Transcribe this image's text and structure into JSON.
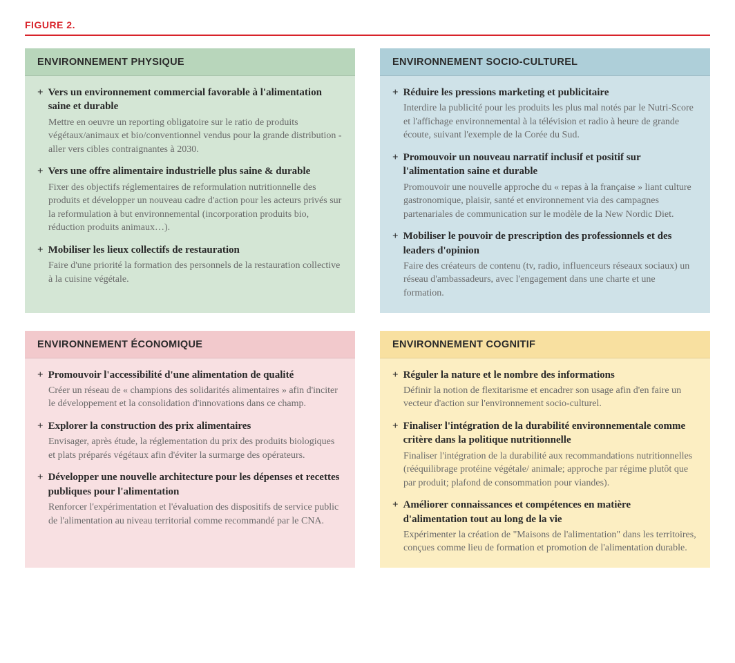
{
  "figure_label": "FIGURE 2.",
  "colors": {
    "accent_red": "#d8232a",
    "text_primary": "#2a2a2a",
    "text_secondary": "#6a6a6a"
  },
  "panels": [
    {
      "key": "phys",
      "title": "ENVIRONNEMENT PHYSIQUE",
      "header_bg": "#b8d6bb",
      "body_bg": "#d4e6d5",
      "items": [
        {
          "heading": "Vers un environnement commercial favorable à l'alimentation saine et durable",
          "desc": "Mettre en oeuvre un reporting obligatoire sur le ratio de produits végétaux/animaux et bio/conventionnel vendus pour la grande distribution - aller vers cibles contraignantes à 2030."
        },
        {
          "heading": "Vers une offre alimentaire industrielle plus saine & durable",
          "desc": "Fixer des objectifs réglementaires de reformulation nutritionnelle des produits et développer un nouveau cadre d'action pour les acteurs privés sur la reformulation à but environnemental (incorporation produits bio, réduction produits animaux…)."
        },
        {
          "heading": "Mobiliser les lieux collectifs de restauration",
          "desc": "Faire d'une priorité la formation des personnels de la restauration collective à la cuisine végétale."
        }
      ]
    },
    {
      "key": "socio",
      "title": "ENVIRONNEMENT SOCIO-CULTUREL",
      "header_bg": "#aecfd9",
      "body_bg": "#cfe2e8",
      "items": [
        {
          "heading": "Réduire les pressions marketing et publicitaire",
          "desc": "Interdire la publicité pour les produits les plus mal notés par le Nutri-Score et l'affichage environnemental à la télévision et radio à heure de grande écoute, suivant l'exemple de la Corée du Sud."
        },
        {
          "heading": "Promouvoir un nouveau narratif inclusif et positif sur l'alimentation saine et durable",
          "desc": "Promouvoir une nouvelle approche du « repas à la française » liant culture gastronomique, plaisir, santé et environnement via des campagnes partenariales de communication sur le modèle de la New Nordic Diet."
        },
        {
          "heading": "Mobiliser le pouvoir de prescription des professionnels et des leaders d'opinion",
          "desc": "Faire des créateurs de contenu (tv, radio, influenceurs réseaux sociaux) un réseau d'ambassadeurs, avec l'engagement dans une charte et une formation."
        }
      ]
    },
    {
      "key": "econ",
      "title": "ENVIRONNEMENT ÉCONOMIQUE",
      "header_bg": "#f2c9cc",
      "body_bg": "#f8e0e2",
      "items": [
        {
          "heading": "Promouvoir l'accessibilité d'une alimentation de qualité",
          "desc": "Créer un réseau de « champions des solidarités alimentaires » afin d'inciter le développement et la consolidation d'innovations dans ce champ."
        },
        {
          "heading": "Explorer la construction des prix alimentaires",
          "desc": "Envisager, après étude, la réglementation du prix des produits biologiques et plats préparés végétaux afin d'éviter la surmarge des opérateurs."
        },
        {
          "heading": "Développer une nouvelle architecture pour les dépenses et recettes publiques pour l'alimentation",
          "desc": "Renforcer l'expérimentation et l'évaluation des dispositifs de service public de l'alimentation au niveau territorial comme recommandé par le CNA."
        }
      ]
    },
    {
      "key": "cog",
      "title": "ENVIRONNEMENT COGNITIF",
      "header_bg": "#f8e0a0",
      "body_bg": "#fceec2",
      "items": [
        {
          "heading": "Réguler la nature et le nombre des informations",
          "desc": "Définir la notion de flexitarisme et encadrer son usage afin d'en faire un vecteur d'action sur l'environnement socio-culturel."
        },
        {
          "heading": "Finaliser l'intégration de la durabilité environnementale comme critère dans la politique nutritionnelle",
          "desc": "Finaliser l'intégration de la durabilité aux recommandations nutritionnelles (rééquilibrage protéine végétale/ animale; approche par régime plutôt que par produit; plafond de consommation pour viandes)."
        },
        {
          "heading": "Améliorer connaissances et compétences en matière d'alimentation tout au long de la vie",
          "desc": "Expérimenter la création de \"Maisons de l'alimentation\" dans les territoires, conçues comme lieu de formation et promotion de l'alimentation durable."
        }
      ]
    }
  ]
}
